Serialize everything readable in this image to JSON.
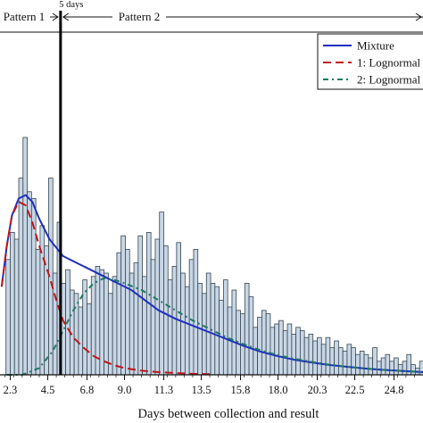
{
  "chart_data": {
    "type": "bar",
    "xlabel": "Days between collection and result",
    "ylabel": "",
    "title": "",
    "xlim": [
      1.7,
      26.5
    ],
    "ylim": [
      0,
      1
    ],
    "grid": false,
    "legend_position": "top-right",
    "tick_labels": [
      "2.3",
      "4.5",
      "6.8",
      "9.0",
      "11.3",
      "13.5",
      "15.8",
      "18.0",
      "20.3",
      "22.5",
      "24.8"
    ],
    "tick_values": [
      2.3,
      4.5,
      6.8,
      9.0,
      11.3,
      13.5,
      15.8,
      18.0,
      20.3,
      22.5,
      24.8
    ],
    "bin_width": 0.25,
    "bin_start": 1.8,
    "bar_values": [
      0.0,
      0.34,
      0.42,
      0.4,
      0.58,
      0.7,
      0.54,
      0.52,
      0.37,
      0.44,
      0.38,
      0.58,
      0.3,
      0.45,
      0.27,
      0.31,
      0.25,
      0.24,
      0.2,
      0.28,
      0.21,
      0.29,
      0.32,
      0.31,
      0.3,
      0.24,
      0.29,
      0.36,
      0.41,
      0.37,
      0.3,
      0.33,
      0.41,
      0.29,
      0.42,
      0.34,
      0.4,
      0.48,
      0.38,
      0.28,
      0.32,
      0.39,
      0.3,
      0.26,
      0.34,
      0.37,
      0.27,
      0.24,
      0.3,
      0.27,
      0.26,
      0.22,
      0.28,
      0.2,
      0.25,
      0.19,
      0.18,
      0.27,
      0.23,
      0.14,
      0.17,
      0.19,
      0.18,
      0.14,
      0.15,
      0.16,
      0.13,
      0.15,
      0.12,
      0.14,
      0.13,
      0.11,
      0.12,
      0.1,
      0.11,
      0.09,
      0.11,
      0.08,
      0.1,
      0.08,
      0.07,
      0.09,
      0.08,
      0.06,
      0.07,
      0.06,
      0.05,
      0.08,
      0.04,
      0.05,
      0.06,
      0.04,
      0.05,
      0.03,
      0.04,
      0.06,
      0.03,
      0.02,
      0.04,
      0.03
    ],
    "series": [
      {
        "name": "Mixture",
        "style": "solid",
        "color": "#1f2fbf",
        "x": [
          1.8,
          2.1,
          2.4,
          2.8,
          3.2,
          3.6,
          4.0,
          4.6,
          5.4,
          6.2,
          7.0,
          7.8,
          8.6,
          9.4,
          10.2,
          11.0,
          12.0,
          13.0,
          14.0,
          15.0,
          16.0,
          17.0,
          18.0,
          19.0,
          20.0,
          21.0,
          22.0,
          23.0,
          24.0,
          25.0,
          26.5
        ],
        "y": [
          0.26,
          0.38,
          0.47,
          0.52,
          0.53,
          0.51,
          0.46,
          0.4,
          0.35,
          0.33,
          0.31,
          0.29,
          0.27,
          0.25,
          0.22,
          0.19,
          0.165,
          0.145,
          0.125,
          0.105,
          0.085,
          0.068,
          0.055,
          0.044,
          0.036,
          0.029,
          0.024,
          0.019,
          0.015,
          0.012,
          0.008
        ]
      },
      {
        "name": "1: Lognormal",
        "style": "dashed",
        "color": "#c0151a",
        "x": [
          1.8,
          2.1,
          2.4,
          2.8,
          3.2,
          3.6,
          4.0,
          4.6,
          5.0,
          5.4,
          6.0,
          6.6,
          7.2,
          7.8,
          8.4,
          9.0,
          10.0,
          11.0,
          12.0,
          13.0,
          14.0
        ],
        "y": [
          0.26,
          0.38,
          0.47,
          0.51,
          0.5,
          0.45,
          0.38,
          0.29,
          0.22,
          0.16,
          0.11,
          0.08,
          0.055,
          0.04,
          0.028,
          0.02,
          0.012,
          0.008,
          0.005,
          0.003,
          0.002
        ]
      },
      {
        "name": "2: Lognormal",
        "style": "dotted",
        "color": "#1d7a60",
        "x": [
          2.1,
          3.0,
          4.0,
          4.8,
          5.4,
          6.0,
          6.6,
          7.2,
          7.8,
          8.4,
          9.0,
          10.0,
          11.0,
          12.0,
          13.0,
          14.0,
          15.0,
          16.0,
          17.0,
          18.0,
          19.0,
          20.0,
          21.0,
          22.0,
          23.0,
          24.0,
          25.0,
          26.5
        ],
        "y": [
          0.0,
          0.0,
          0.02,
          0.07,
          0.13,
          0.19,
          0.24,
          0.27,
          0.285,
          0.28,
          0.27,
          0.25,
          0.22,
          0.19,
          0.16,
          0.135,
          0.11,
          0.09,
          0.072,
          0.058,
          0.047,
          0.038,
          0.03,
          0.024,
          0.019,
          0.015,
          0.012,
          0.008
        ]
      }
    ],
    "annotations": {
      "vline_x": 5.25,
      "vline_label": "5 days",
      "pattern1_label": "Pattern 1",
      "pattern2_label": "Pattern 2"
    },
    "colors": {
      "bar_fill": "#c8d6e6",
      "bar_stroke": "#37474f"
    }
  }
}
